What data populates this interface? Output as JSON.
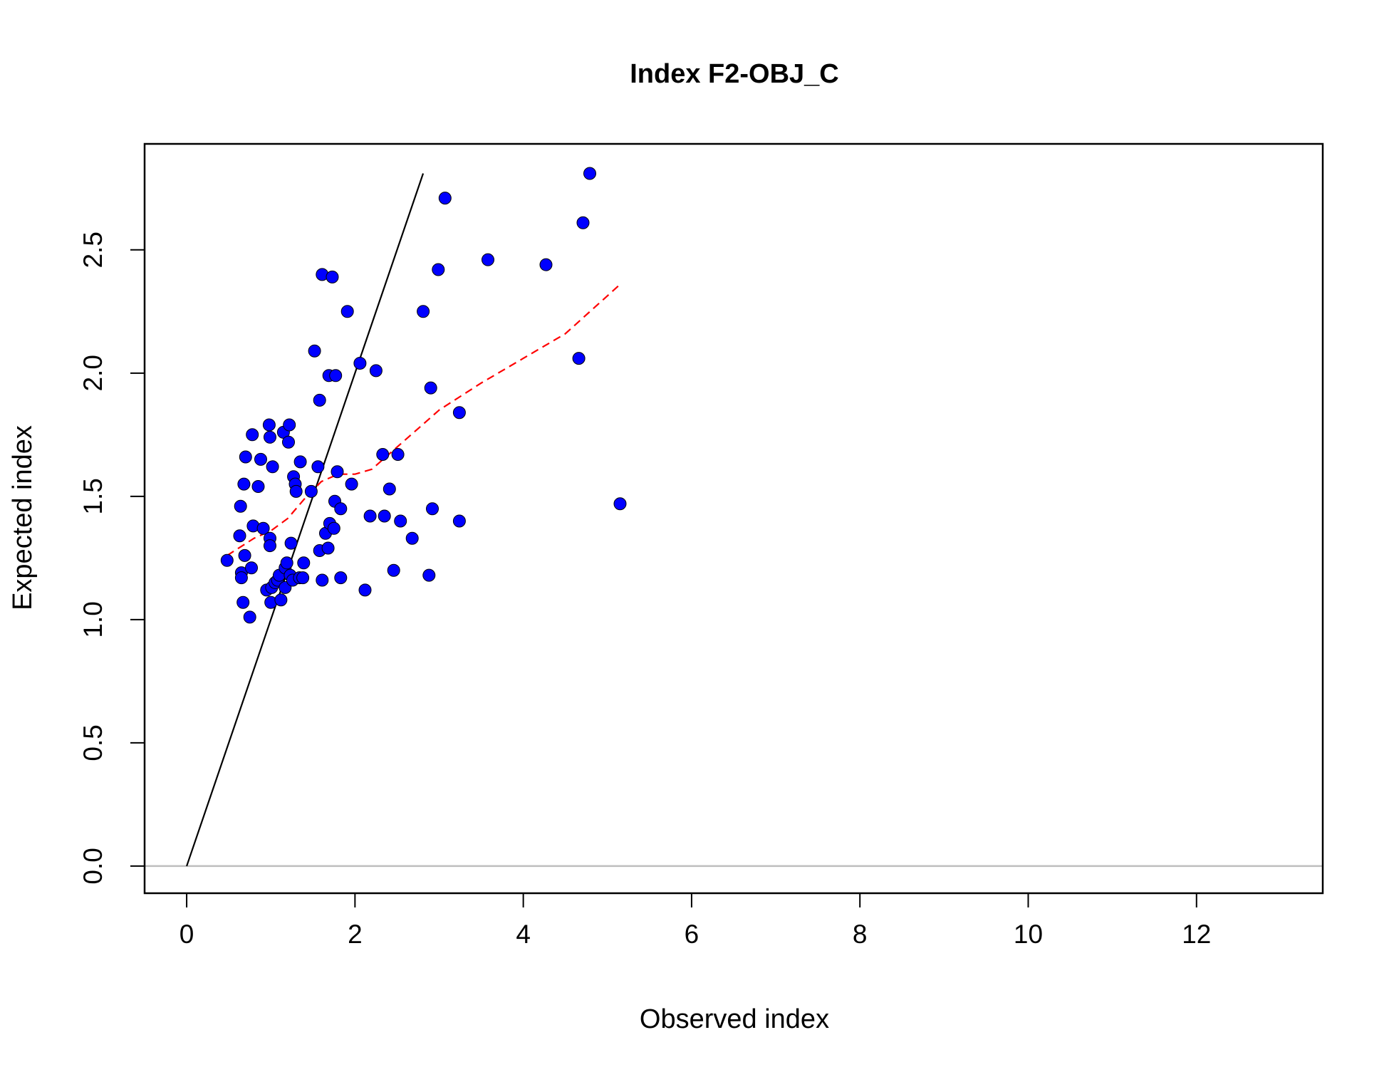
{
  "chart_data": {
    "type": "scatter",
    "title": "Index F2-OBJ_C",
    "xlabel": "Observed index",
    "ylabel": "Expected index",
    "xlim": [
      -0.5,
      13.5
    ],
    "ylim": [
      -0.11,
      2.93
    ],
    "xticks": [
      "0",
      "2",
      "4",
      "6",
      "8",
      "10",
      "12"
    ],
    "yticks": [
      "0.0",
      "0.5",
      "1.0",
      "1.5",
      "2.0",
      "2.5"
    ],
    "grid": false,
    "legend": "none",
    "colors": {
      "points_fill": "#0000ff",
      "points_stroke": "#000000",
      "identity_line": "#000000",
      "smooth_line": "#ff0000",
      "zero_line": "#bebebe"
    },
    "series": [
      {
        "type": "scatter",
        "points": [
          [
            0.48,
            1.24
          ],
          [
            0.63,
            1.34
          ],
          [
            0.64,
            1.46
          ],
          [
            0.65,
            1.19
          ],
          [
            0.65,
            1.17
          ],
          [
            0.67,
            1.07
          ],
          [
            0.68,
            1.55
          ],
          [
            0.69,
            1.26
          ],
          [
            0.7,
            1.66
          ],
          [
            0.75,
            1.01
          ],
          [
            0.77,
            1.21
          ],
          [
            0.78,
            1.75
          ],
          [
            0.79,
            1.38
          ],
          [
            0.85,
            1.54
          ],
          [
            0.88,
            1.65
          ],
          [
            0.91,
            1.37
          ],
          [
            0.95,
            1.12
          ],
          [
            0.98,
            1.79
          ],
          [
            0.99,
            1.74
          ],
          [
            0.99,
            1.33
          ],
          [
            0.99,
            1.3
          ],
          [
            1.0,
            1.07
          ],
          [
            1.01,
            1.13
          ],
          [
            1.02,
            1.62
          ],
          [
            1.05,
            1.15
          ],
          [
            1.08,
            1.16
          ],
          [
            1.1,
            1.18
          ],
          [
            1.12,
            1.08
          ],
          [
            1.15,
            1.76
          ],
          [
            1.17,
            1.21
          ],
          [
            1.17,
            1.13
          ],
          [
            1.19,
            1.23
          ],
          [
            1.21,
            1.72
          ],
          [
            1.22,
            1.79
          ],
          [
            1.23,
            1.18
          ],
          [
            1.24,
            1.31
          ],
          [
            1.26,
            1.16
          ],
          [
            1.27,
            1.58
          ],
          [
            1.29,
            1.55
          ],
          [
            1.3,
            1.52
          ],
          [
            1.34,
            1.17
          ],
          [
            1.35,
            1.64
          ],
          [
            1.38,
            1.17
          ],
          [
            1.39,
            1.23
          ],
          [
            1.48,
            1.52
          ],
          [
            1.52,
            2.09
          ],
          [
            1.56,
            1.62
          ],
          [
            1.58,
            1.89
          ],
          [
            1.58,
            1.28
          ],
          [
            1.61,
            2.4
          ],
          [
            1.61,
            1.16
          ],
          [
            1.65,
            1.35
          ],
          [
            1.68,
            1.29
          ],
          [
            1.69,
            1.99
          ],
          [
            1.7,
            1.39
          ],
          [
            1.73,
            2.39
          ],
          [
            1.75,
            1.37
          ],
          [
            1.76,
            1.48
          ],
          [
            1.77,
            1.99
          ],
          [
            1.79,
            1.6
          ],
          [
            1.83,
            1.45
          ],
          [
            1.83,
            1.17
          ],
          [
            1.91,
            2.25
          ],
          [
            1.96,
            1.55
          ],
          [
            2.06,
            2.04
          ],
          [
            2.12,
            1.12
          ],
          [
            2.18,
            1.42
          ],
          [
            2.25,
            2.01
          ],
          [
            2.33,
            1.67
          ],
          [
            2.35,
            1.42
          ],
          [
            2.41,
            1.53
          ],
          [
            2.46,
            1.2
          ],
          [
            2.51,
            1.67
          ],
          [
            2.54,
            1.4
          ],
          [
            2.68,
            1.33
          ],
          [
            2.81,
            2.25
          ],
          [
            2.88,
            1.18
          ],
          [
            2.9,
            1.94
          ],
          [
            2.92,
            1.45
          ],
          [
            2.99,
            2.42
          ],
          [
            3.07,
            2.71
          ],
          [
            3.24,
            1.84
          ],
          [
            3.24,
            1.4
          ],
          [
            3.58,
            2.46
          ],
          [
            4.27,
            2.44
          ],
          [
            4.66,
            2.06
          ],
          [
            4.71,
            2.61
          ],
          [
            4.79,
            2.81
          ],
          [
            5.15,
            1.47
          ]
        ]
      },
      {
        "type": "line",
        "style": "solid",
        "points": [
          [
            0,
            0
          ],
          [
            2.81,
            2.81
          ]
        ]
      },
      {
        "type": "line",
        "style": "dashed",
        "points": [
          [
            0.48,
            1.26
          ],
          [
            0.8,
            1.33
          ],
          [
            1.0,
            1.36
          ],
          [
            1.2,
            1.41
          ],
          [
            1.4,
            1.49
          ],
          [
            1.6,
            1.56
          ],
          [
            1.8,
            1.59
          ],
          [
            2.0,
            1.59
          ],
          [
            2.2,
            1.61
          ],
          [
            2.4,
            1.67
          ],
          [
            2.6,
            1.73
          ],
          [
            2.8,
            1.79
          ],
          [
            3.0,
            1.85
          ],
          [
            3.5,
            1.96
          ],
          [
            4.0,
            2.06
          ],
          [
            4.5,
            2.16
          ],
          [
            5.15,
            2.36
          ]
        ]
      },
      {
        "type": "line",
        "style": "solid",
        "points": [
          [
            -0.5,
            0
          ],
          [
            13.5,
            0
          ]
        ]
      }
    ]
  }
}
